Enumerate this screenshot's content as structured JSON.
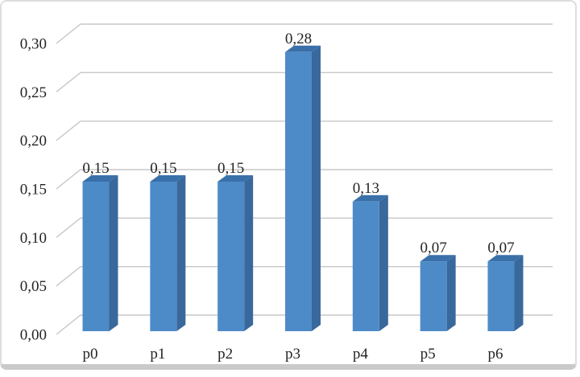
{
  "chart_data": {
    "type": "bar",
    "style": "3d-column",
    "title": "",
    "legend": "none",
    "grid": true,
    "decimal_separator": ",",
    "categories": [
      "p0",
      "p1",
      "p2",
      "p3",
      "p4",
      "p5",
      "p6"
    ],
    "values": [
      0.15,
      0.15,
      0.15,
      0.28,
      0.13,
      0.07,
      0.07
    ],
    "data_labels": [
      "0,15",
      "0,15",
      "0,15",
      "0,28",
      "0,13",
      "0,07",
      "0,07"
    ],
    "y_axis": {
      "min": 0,
      "max": 0.3,
      "step": 0.05,
      "tick_labels": [
        "0,00",
        "0,05",
        "0,10",
        "0,15",
        "0,20",
        "0,25",
        "0,30"
      ],
      "tick_values": [
        0,
        0.05,
        0.1,
        0.15,
        0.2,
        0.25,
        0.3
      ]
    },
    "xlabel": "",
    "ylabel": "",
    "colors": {
      "bar_front": "#4d8bc8",
      "bar_top": "#3a70a9",
      "bar_side": "#39689c",
      "gridline": "#c7c7c7",
      "text": "#242424"
    }
  },
  "frame": {
    "background": "#ffffff",
    "border_color": "#dedede",
    "bottom_band_color": "#cacaca"
  }
}
